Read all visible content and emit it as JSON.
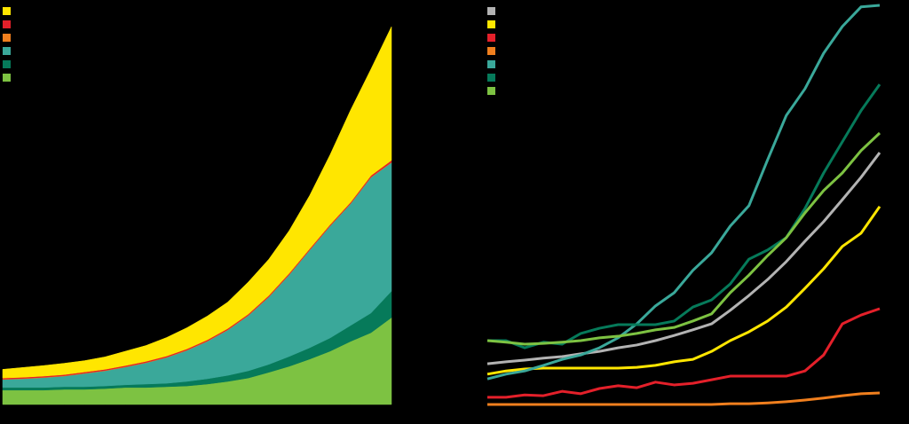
{
  "chart_data": [
    {
      "type": "area",
      "stacked": true,
      "categories": [
        null,
        null,
        null,
        null,
        null,
        null,
        null,
        null,
        null,
        null,
        null,
        null,
        null,
        null,
        null,
        null,
        null,
        null,
        null,
        null
      ],
      "ylim": [
        0,
        100
      ],
      "series": [
        {
          "color": "#7dc242",
          "values": [
            3.8,
            3.8,
            3.8,
            4,
            4,
            4.2,
            4.5,
            4.5,
            4.7,
            4.9,
            5.4,
            6.1,
            7,
            8.5,
            10.1,
            12,
            14.1,
            16.7,
            19,
            23
          ]
        },
        {
          "color": "#067a5a",
          "values": [
            0.7,
            0.7,
            0.7,
            0.7,
            0.7,
            0.7,
            0.7,
            0.9,
            0.9,
            1.2,
            1.4,
            1.6,
            1.9,
            2.1,
            2.6,
            3,
            3.5,
            4.2,
            5.2,
            7
          ]
        },
        {
          "color": "#3aa89a",
          "values": [
            2.1,
            2.3,
            2.6,
            2.8,
            3.5,
            4,
            4.7,
            5.6,
            6.8,
            8.2,
            9.9,
            12,
            14.6,
            17.8,
            21.6,
            25.8,
            29.6,
            32.2,
            35.9,
            34
          ]
        },
        {
          "color": "#f07f1e",
          "values": [
            0.1,
            0.1,
            0.1,
            0.1,
            0.1,
            0.1,
            0.1,
            0.1,
            0.1,
            0.1,
            0.1,
            0.1,
            0.1,
            0.1,
            0.1,
            0.1,
            0.1,
            0.1,
            0.1,
            0.1
          ]
        },
        {
          "color": "#e4202a",
          "values": [
            0.3,
            0.3,
            0.3,
            0.3,
            0.3,
            0.3,
            0.3,
            0.3,
            0.3,
            0.3,
            0.3,
            0.3,
            0.3,
            0.3,
            0.3,
            0.3,
            0.3,
            0.3,
            0.4,
            0.5
          ]
        },
        {
          "color": "#ffe600",
          "values": [
            2.3,
            2.6,
            2.8,
            3,
            3,
            3.3,
            3.8,
            4.2,
            4.9,
            5.6,
            6.3,
            7,
            8.5,
            9.6,
            11.3,
            14.1,
            18.5,
            24.4,
            28.2,
            35.4
          ]
        }
      ]
    },
    {
      "type": "line",
      "categories": [
        null,
        null,
        null,
        null,
        null,
        null,
        null,
        null,
        null,
        null,
        null,
        null,
        null,
        null,
        null,
        null,
        null,
        null,
        null,
        null,
        null,
        null
      ],
      "ylim": [
        0,
        100
      ],
      "series": [
        {
          "color": "#b3b3b3",
          "values": [
            10.2,
            10.7,
            11.1,
            11.6,
            12,
            12.7,
            13.3,
            14.2,
            14.9,
            16,
            17.3,
            18.7,
            20.2,
            23.6,
            27.3,
            31.3,
            35.8,
            40.9,
            45.8,
            51.3,
            56.9,
            63.1
          ]
        },
        {
          "color": "#ffe600",
          "values": [
            7.6,
            8.4,
            8.9,
            9.1,
            9.1,
            9.1,
            9.1,
            9.1,
            9.3,
            9.8,
            10.7,
            11.3,
            13.3,
            16,
            18.2,
            20.9,
            24.4,
            29.1,
            34,
            39.6,
            42.9,
            49.6
          ]
        },
        {
          "color": "#e4202a",
          "values": [
            1.8,
            1.8,
            2.4,
            2.2,
            3.3,
            2.7,
            4,
            4.7,
            4.2,
            5.6,
            4.9,
            5.3,
            6.2,
            7.1,
            7.1,
            7.1,
            7.1,
            8.4,
            12.4,
            20.2,
            22.4,
            24
          ]
        },
        {
          "color": "#f07f1e",
          "values": [
            0,
            0,
            0,
            0,
            0,
            0,
            0,
            0,
            0,
            0,
            0,
            0,
            0,
            0.2,
            0.2,
            0.4,
            0.7,
            1.1,
            1.6,
            2.2,
            2.7,
            2.9
          ]
        },
        {
          "color": "#3aa89a",
          "values": [
            6.4,
            7.6,
            8.4,
            9.8,
            11.3,
            12.4,
            14.2,
            16.7,
            20.2,
            24.7,
            28,
            33.6,
            38,
            44.7,
            49.8,
            61.3,
            72.4,
            79.1,
            88,
            94.7,
            99.6,
            100
          ]
        },
        {
          "color": "#067a5a",
          "values": [
            16,
            16,
            14.2,
            15.6,
            15.1,
            17.8,
            19.1,
            20,
            20,
            20,
            20.9,
            24.4,
            26.2,
            30.2,
            36.4,
            38.7,
            41.8,
            49.1,
            58,
            65.8,
            73.6,
            80.2
          ]
        },
        {
          "color": "#7dc242",
          "values": [
            16,
            15.6,
            15.1,
            15.3,
            15.6,
            16,
            16.7,
            17.1,
            17.8,
            18.7,
            19.3,
            20.9,
            22.7,
            28,
            32.4,
            37.3,
            41.8,
            48,
            53.6,
            58,
            63.6,
            68
          ]
        }
      ]
    }
  ]
}
